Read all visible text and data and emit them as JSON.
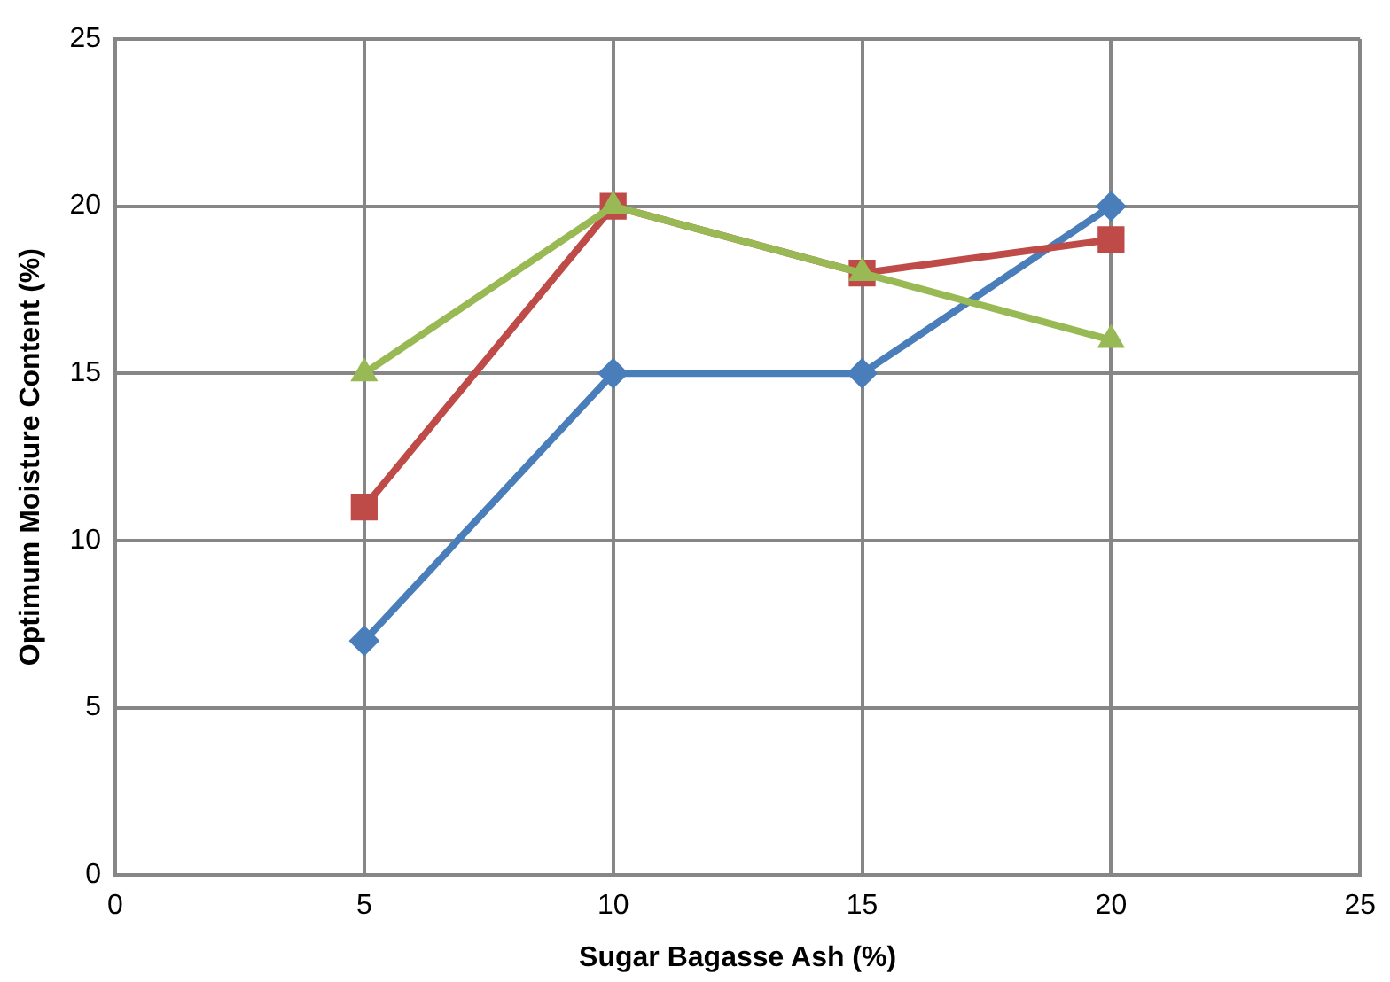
{
  "chart_data": {
    "type": "line",
    "xlabel": "Sugar Bagasse Ash (%)",
    "ylabel": "Optimum Moisture Content (%)",
    "x": [
      5,
      10,
      15,
      20
    ],
    "series": [
      {
        "color": "#4a7ebb",
        "marker": "diamond",
        "values": [
          7,
          15,
          15,
          20
        ]
      },
      {
        "color": "#be4b48",
        "marker": "square",
        "values": [
          11,
          20,
          18,
          19
        ]
      },
      {
        "color": "#98b954",
        "marker": "triangle",
        "values": [
          15,
          20,
          18,
          16
        ]
      }
    ],
    "xlim": [
      0,
      25
    ],
    "xticks": [
      0,
      5,
      10,
      15,
      20,
      25
    ],
    "ylim": [
      0,
      25
    ],
    "yticks": [
      0,
      5,
      10,
      15,
      20,
      25
    ],
    "grid": true,
    "legend": false,
    "line_style": "solid"
  }
}
